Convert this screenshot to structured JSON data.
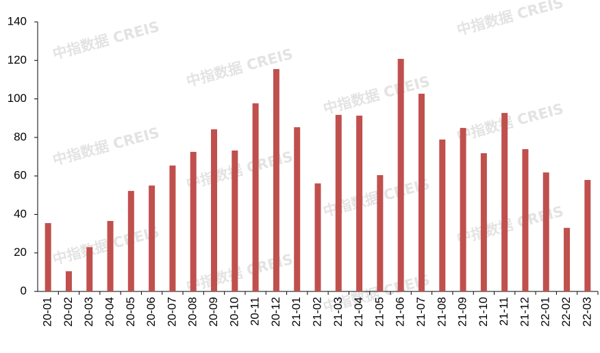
{
  "chart_data": {
    "type": "bar",
    "categories": [
      "20-01",
      "20-02",
      "20-03",
      "20-04",
      "20-05",
      "20-06",
      "20-07",
      "20-08",
      "20-09",
      "20-10",
      "20-11",
      "20-12",
      "21-01",
      "21-02",
      "21-03",
      "21-04",
      "21-05",
      "21-06",
      "21-07",
      "21-08",
      "21-09",
      "21-10",
      "21-11",
      "21-12",
      "22-01",
      "22-02",
      "22-03"
    ],
    "values": [
      35.5,
      10.5,
      23,
      36.6,
      52.2,
      55,
      65.4,
      72.5,
      84.2,
      73.2,
      97.7,
      115.5,
      85.3,
      56.1,
      91.7,
      91.3,
      60.4,
      120.8,
      102.7,
      78.9,
      84.9,
      71.8,
      92.7,
      73.9,
      61.8,
      33,
      57.9
    ],
    "color": "#c0504d",
    "ylim": [
      0,
      140
    ],
    "yticks": [
      0,
      20,
      40,
      60,
      80,
      100,
      120,
      140
    ],
    "grid": false,
    "watermark": "中指数据 CREIS"
  }
}
